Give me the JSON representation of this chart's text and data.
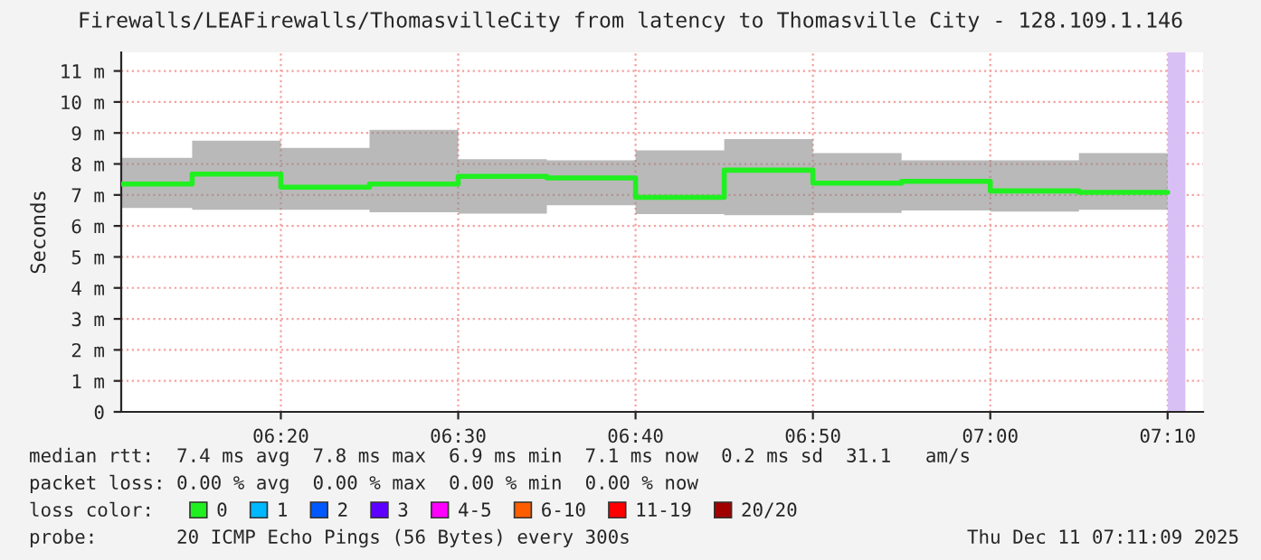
{
  "chart_data": {
    "type": "step",
    "title": "Firewalls/LEAFirewalls/ThomasvilleCity from latency to Thomasville City - 128.109.1.146",
    "ylabel": "Seconds",
    "x": [
      "2025-12-11T06:11",
      "2025-12-11T06:15",
      "2025-12-11T06:20",
      "2025-12-11T06:25",
      "2025-12-11T06:30",
      "2025-12-11T06:35",
      "2025-12-11T06:40",
      "2025-12-11T06:45",
      "2025-12-11T06:50",
      "2025-12-11T06:55",
      "2025-12-11T07:00",
      "2025-12-11T07:05",
      "2025-12-11T07:10"
    ],
    "series": [
      {
        "name": "0",
        "color": "#20f020",
        "values": [
          7.35,
          7.67,
          7.25,
          7.35,
          7.6,
          7.55,
          6.92,
          7.8,
          7.38,
          7.44,
          7.13,
          7.08,
          7.08
        ],
        "lower": [
          6.58,
          6.52,
          6.52,
          6.44,
          6.4,
          6.67,
          6.38,
          6.35,
          6.42,
          6.5,
          6.46,
          6.52,
          6.52
        ],
        "upper": [
          8.2,
          8.75,
          8.52,
          9.1,
          8.15,
          8.12,
          8.44,
          8.8,
          8.35,
          8.12,
          8.12,
          8.35,
          8.35
        ]
      },
      {
        "name": "1",
        "color": "#00b8ff",
        "values": [
          null,
          null,
          null,
          null,
          null,
          null,
          null,
          null,
          null,
          null,
          null,
          null,
          null
        ]
      },
      {
        "name": "2",
        "color": "#0059ff",
        "values": [
          null,
          null,
          null,
          null,
          null,
          null,
          null,
          null,
          null,
          null,
          null,
          null,
          null
        ]
      },
      {
        "name": "3",
        "color": "#5e00ff",
        "values": [
          null,
          null,
          null,
          null,
          null,
          null,
          null,
          null,
          null,
          null,
          null,
          null,
          null
        ]
      },
      {
        "name": "4-5",
        "color": "#ff00ff",
        "values": [
          null,
          null,
          null,
          null,
          null,
          null,
          null,
          null,
          null,
          null,
          null,
          null,
          null
        ]
      },
      {
        "name": "6-10",
        "color": "#ff5e00",
        "values": [
          null,
          null,
          null,
          null,
          null,
          null,
          null,
          null,
          null,
          null,
          null,
          null,
          null
        ]
      },
      {
        "name": "11-19",
        "color": "#ff0000",
        "values": [
          null,
          null,
          null,
          null,
          null,
          null,
          null,
          null,
          null,
          null,
          null,
          null,
          null
        ]
      },
      {
        "name": "20/20",
        "color": "#a10000",
        "values": [
          null,
          null,
          null,
          null,
          null,
          null,
          null,
          null,
          null,
          null,
          null,
          null,
          null
        ]
      }
    ],
    "xlim": [
      "2025-12-11T06:11",
      "2025-12-11T07:12"
    ],
    "xticks": [
      {
        "value": "2025-12-11T06:20",
        "label": "06:20"
      },
      {
        "value": "2025-12-11T06:30",
        "label": "06:30"
      },
      {
        "value": "2025-12-11T06:40",
        "label": "06:40"
      },
      {
        "value": "2025-12-11T06:50",
        "label": "06:50"
      },
      {
        "value": "2025-12-11T07:00",
        "label": "07:00"
      },
      {
        "value": "2025-12-11T07:10",
        "label": "07:10"
      }
    ],
    "ylim": [
      0,
      11.6
    ],
    "yticks": [
      0,
      {
        "value": 1,
        "label": "1 m"
      },
      {
        "value": 2,
        "label": "2 m"
      },
      {
        "value": 3,
        "label": "3 m"
      },
      {
        "value": 4,
        "label": "4 m"
      },
      {
        "value": 5,
        "label": "5 m"
      },
      {
        "value": 6,
        "label": "6 m"
      },
      {
        "value": 7,
        "label": "7 m"
      },
      {
        "value": 8,
        "label": "8 m"
      },
      {
        "value": 9,
        "label": "9 m"
      },
      {
        "value": 10,
        "label": "10 m"
      },
      {
        "value": 11,
        "label": "11 m"
      }
    ],
    "bands": [
      {
        "axis": "x",
        "from": "2025-12-11T07:10",
        "to": "2025-12-11T07:11",
        "color": "#d8c0f4"
      }
    ],
    "grid": true,
    "legend": "bottom",
    "line_style": "solid",
    "annotations": [
      "median rtt:  7.4 ms avg  7.8 ms max  6.9 ms min  7.1 ms now  0.2 ms sd  31.1   am/s",
      "packet loss: 0.00 % avg  0.00 % max  0.00 % min  0.00 % now",
      "loss color:",
      "probe:       20 ICMP Echo Pings (56 Bytes) every 300s",
      "Thu Dec 11 07:11:09 2025"
    ]
  }
}
